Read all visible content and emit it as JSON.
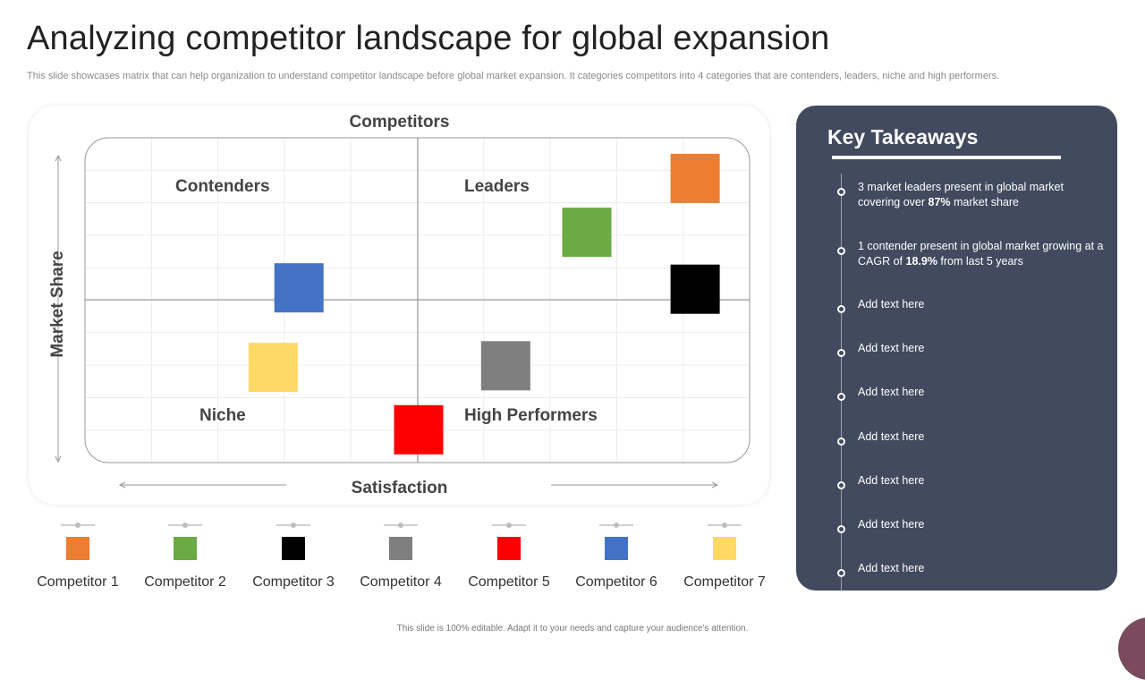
{
  "title": "Analyzing competitor landscape for global expansion",
  "subtitle": "This slide showcases matrix that can help organization to understand competitor landscape before global market expansion. It categories competitors into 4 categories that are contenders, leaders, niche and high performers.",
  "matrix": {
    "axis_top": "Competitors",
    "x_label": "Satisfaction",
    "y_label": "Market Share",
    "quadrants": {
      "top_left": "Contenders",
      "top_right": "Leaders",
      "bottom_left": "Niche",
      "bottom_right": "High Performers"
    }
  },
  "chart_data": {
    "type": "scatter",
    "xlabel": "Satisfaction",
    "ylabel": "Market Share",
    "points": [
      {
        "name": "Competitor 1",
        "x": 0.918,
        "y": 0.875,
        "color": "#ED7D31"
      },
      {
        "name": "Competitor 2",
        "x": 0.755,
        "y": 0.709,
        "color": "#6BAA44"
      },
      {
        "name": "Competitor 3",
        "x": 0.918,
        "y": 0.534,
        "color": "#000000"
      },
      {
        "name": "Competitor 4",
        "x": 0.633,
        "y": 0.298,
        "color": "#7F7F7F"
      },
      {
        "name": "Competitor 5",
        "x": 0.502,
        "y": 0.101,
        "color": "#FF0000"
      },
      {
        "name": "Competitor 6",
        "x": 0.322,
        "y": 0.538,
        "color": "#4472C4"
      },
      {
        "name": "Competitor 7",
        "x": 0.283,
        "y": 0.293,
        "color": "#FFD966"
      }
    ]
  },
  "legend": [
    {
      "label": "Competitor 1",
      "color": "#ED7D31"
    },
    {
      "label": "Competitor 2",
      "color": "#6BAA44"
    },
    {
      "label": "Competitor 3",
      "color": "#000000"
    },
    {
      "label": "Competitor 4",
      "color": "#7F7F7F"
    },
    {
      "label": "Competitor 5",
      "color": "#FF0000"
    },
    {
      "label": "Competitor 6",
      "color": "#4472C4"
    },
    {
      "label": "Competitor 7",
      "color": "#FFD966"
    }
  ],
  "takeaways": {
    "title": "Key Takeaways",
    "items": [
      {
        "pre": "3 market leaders present in global market covering over ",
        "bold": "87%",
        "post": " market share"
      },
      {
        "pre": "1 contender present in global market growing at a CAGR of ",
        "bold": "18.9%",
        "post": " from last 5 years"
      },
      {
        "pre": "Add text here",
        "bold": "",
        "post": ""
      },
      {
        "pre": "Add text here",
        "bold": "",
        "post": ""
      },
      {
        "pre": "Add text here",
        "bold": "",
        "post": ""
      },
      {
        "pre": "Add text here",
        "bold": "",
        "post": ""
      },
      {
        "pre": "Add text here",
        "bold": "",
        "post": ""
      },
      {
        "pre": "Add text here",
        "bold": "",
        "post": ""
      },
      {
        "pre": "Add text here",
        "bold": "",
        "post": ""
      }
    ]
  },
  "footer": "This slide is 100% editable.  Adapt it to your needs and capture your audience's attention.",
  "colors": {
    "panel_bg": "#414a5e",
    "accent_deco": "#7a4a5e"
  }
}
